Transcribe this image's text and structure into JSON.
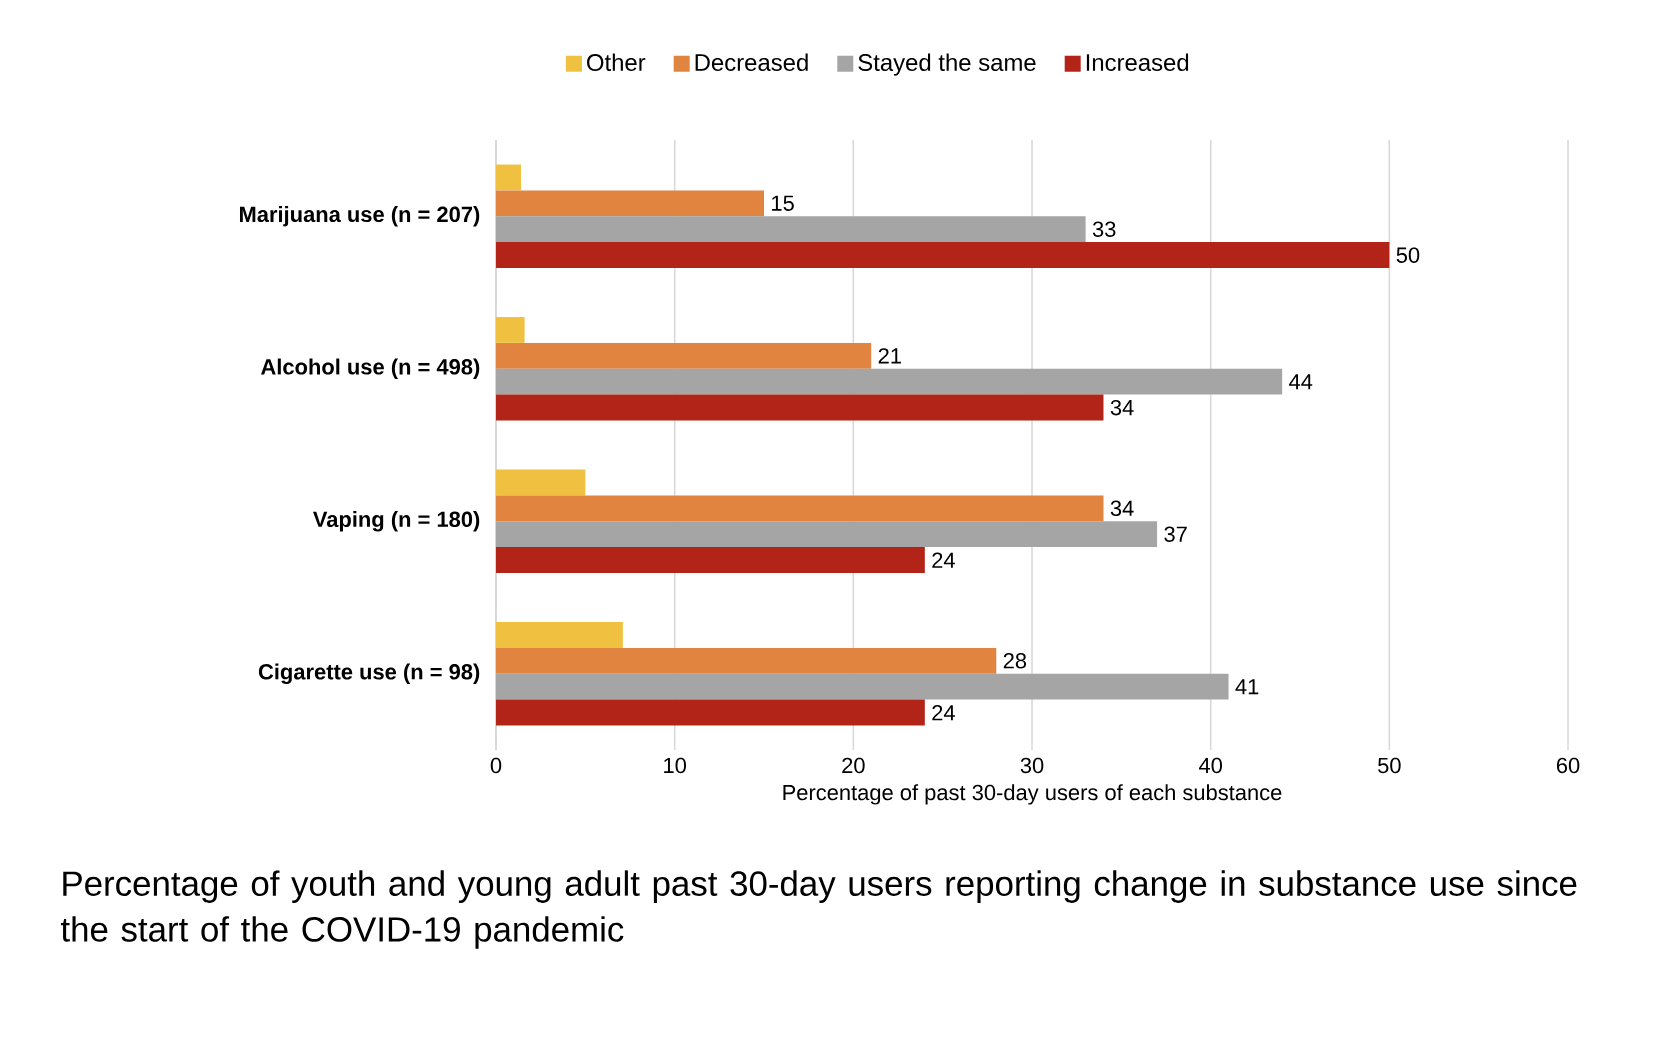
{
  "chart_data": {
    "type": "bar",
    "orientation": "horizontal",
    "title": "Percentage of youth and young adult past 30-day users reporting change in substance use since the start of the COVID-19 pandemic",
    "xlabel": "Percentage of past 30-day users of each substance",
    "categories": [
      "Marijuana use (n = 207)",
      "Alcohol use (n = 498)",
      "Vaping (n = 180)",
      "Cigarette use (n = 98)"
    ],
    "series": [
      {
        "name": "Other",
        "color": "#f0c040",
        "values": [
          1.4,
          1.6,
          5.0,
          7.1
        ],
        "value_labels": [
          null,
          null,
          null,
          null
        ]
      },
      {
        "name": "Decreased",
        "color": "#e0843f",
        "values": [
          15,
          21,
          34,
          28
        ],
        "value_labels": [
          "15",
          "21",
          "34",
          "28"
        ]
      },
      {
        "name": "Stayed the same",
        "color": "#a5a5a5",
        "values": [
          33,
          44,
          37,
          41
        ],
        "value_labels": [
          "33",
          "44",
          "37",
          "41"
        ]
      },
      {
        "name": "Increased",
        "color": "#b22418",
        "values": [
          50,
          34,
          24,
          24
        ],
        "value_labels": [
          "50",
          "34",
          "24",
          "24"
        ]
      }
    ],
    "xlim": [
      0,
      60
    ],
    "xticks": [
      0,
      10,
      20,
      30,
      40,
      50,
      60
    ],
    "grid": "x",
    "legend": "top"
  }
}
